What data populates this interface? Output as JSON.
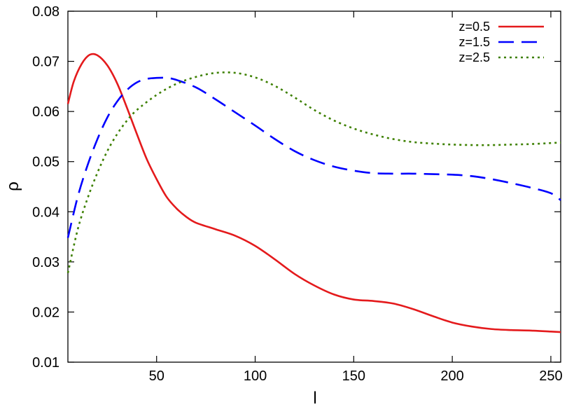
{
  "chart_data": {
    "type": "line",
    "title": "",
    "xlabel": "l",
    "ylabel": "ρ",
    "xlim": [
      5,
      255
    ],
    "ylim": [
      0.01,
      0.08
    ],
    "xticks": [
      50,
      100,
      150,
      200,
      250
    ],
    "xtick_labels": [
      "50",
      "100",
      "150",
      "200",
      "250"
    ],
    "yticks": [
      0.01,
      0.02,
      0.03,
      0.04,
      0.05,
      0.06,
      0.07,
      0.08
    ],
    "ytick_labels": [
      "0.01",
      "0.02",
      "0.03",
      "0.04",
      "0.05",
      "0.06",
      "0.07",
      "0.08"
    ],
    "grid": false,
    "legend_position": "top-right",
    "series": [
      {
        "name": "z=0.5",
        "color": "#e41a1c",
        "style": "solid",
        "x": [
          5,
          8,
          12,
          16,
          20,
          25,
          30,
          35,
          40,
          45,
          50,
          55,
          60,
          65,
          70,
          80,
          90,
          100,
          110,
          120,
          130,
          140,
          150,
          160,
          170,
          180,
          190,
          200,
          210,
          220,
          230,
          240,
          250,
          255
        ],
        "y": [
          0.0615,
          0.066,
          0.0695,
          0.0713,
          0.0712,
          0.0692,
          0.0656,
          0.0607,
          0.0555,
          0.0505,
          0.0465,
          0.043,
          0.0407,
          0.039,
          0.0378,
          0.0365,
          0.0352,
          0.0332,
          0.0305,
          0.0276,
          0.0253,
          0.0235,
          0.0225,
          0.0222,
          0.0217,
          0.0206,
          0.0192,
          0.0179,
          0.0171,
          0.0166,
          0.0164,
          0.0163,
          0.0161,
          0.016
        ]
      },
      {
        "name": "z=1.5",
        "color": "#0000ff",
        "style": "dashed",
        "x": [
          5,
          10,
          15,
          20,
          25,
          30,
          35,
          40,
          45,
          50,
          55,
          60,
          70,
          80,
          90,
          100,
          110,
          120,
          130,
          140,
          150,
          160,
          170,
          180,
          190,
          200,
          210,
          220,
          230,
          240,
          250,
          255
        ],
        "y": [
          0.0348,
          0.043,
          0.0493,
          0.0545,
          0.0588,
          0.062,
          0.0643,
          0.0658,
          0.0665,
          0.0667,
          0.0667,
          0.0663,
          0.0648,
          0.0624,
          0.0598,
          0.0572,
          0.0545,
          0.0521,
          0.0503,
          0.049,
          0.0482,
          0.0477,
          0.0476,
          0.0476,
          0.0475,
          0.0474,
          0.0471,
          0.0465,
          0.0457,
          0.0448,
          0.0437,
          0.0423
        ]
      },
      {
        "name": "z=2.5",
        "color": "#3d8000",
        "style": "dotted",
        "x": [
          5,
          10,
          15,
          20,
          25,
          30,
          35,
          40,
          50,
          60,
          70,
          80,
          90,
          100,
          110,
          120,
          130,
          140,
          150,
          160,
          170,
          180,
          190,
          200,
          210,
          220,
          230,
          240,
          250,
          255
        ],
        "y": [
          0.0278,
          0.0365,
          0.0427,
          0.0478,
          0.0521,
          0.0555,
          0.0582,
          0.0603,
          0.0633,
          0.0655,
          0.0669,
          0.0677,
          0.0677,
          0.0668,
          0.0651,
          0.0628,
          0.0603,
          0.0582,
          0.0566,
          0.0554,
          0.0545,
          0.0539,
          0.0536,
          0.0534,
          0.0533,
          0.0533,
          0.0534,
          0.0535,
          0.0537,
          0.0538
        ]
      }
    ]
  }
}
